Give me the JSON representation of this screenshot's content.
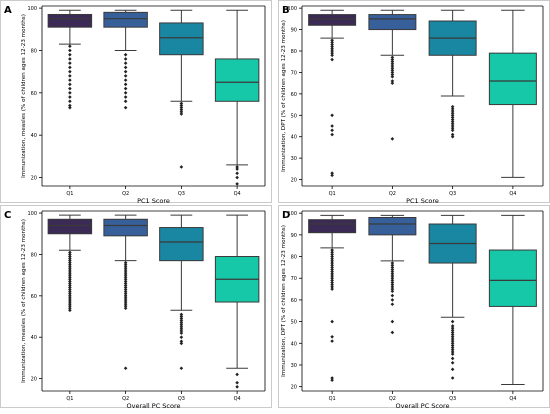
{
  "chart_data": [
    {
      "type": "box",
      "panel_label": "A",
      "xlabel": "PC1 Score",
      "ylabel": "Immunization, measles (% of children ages 12-23 months)",
      "categories": [
        "Q1",
        "Q2",
        "Q3",
        "Q4"
      ],
      "ylim": [
        16,
        101
      ],
      "yticks": [
        20,
        40,
        60,
        80,
        100
      ],
      "boxes": [
        {
          "category": "Q1",
          "whisker_low": 83,
          "q1": 91,
          "median": 95,
          "q3": 97,
          "whisker_high": 99,
          "outliers": [
            82,
            80,
            78,
            76,
            74,
            72,
            70,
            68,
            66,
            64,
            62,
            60,
            58,
            56,
            54,
            53
          ]
        },
        {
          "category": "Q2",
          "whisker_low": 80,
          "q1": 91,
          "median": 95,
          "q3": 98,
          "whisker_high": 99,
          "outliers": [
            78,
            76,
            74,
            72,
            70,
            68,
            66,
            64,
            62,
            60,
            58,
            56,
            53
          ]
        },
        {
          "category": "Q3",
          "whisker_low": 56,
          "q1": 78,
          "median": 86,
          "q3": 93,
          "whisker_high": 99,
          "outliers": [
            55,
            54,
            53,
            52,
            51,
            50,
            25
          ]
        },
        {
          "category": "Q4",
          "whisker_low": 26,
          "q1": 56,
          "median": 65,
          "q3": 76,
          "whisker_high": 99,
          "outliers": [
            25,
            24,
            22,
            20,
            17
          ]
        }
      ]
    },
    {
      "type": "box",
      "panel_label": "B",
      "xlabel": "PC1 Score",
      "ylabel": "Immunization, DPT (% of children ages 12-23 months)",
      "categories": [
        "Q1",
        "Q2",
        "Q3",
        "Q4"
      ],
      "ylim": [
        17,
        101
      ],
      "yticks": [
        20,
        30,
        40,
        50,
        60,
        70,
        80,
        90,
        100
      ],
      "boxes": [
        {
          "category": "Q1",
          "whisker_low": 86,
          "q1": 92,
          "median": 95,
          "q3": 97,
          "whisker_high": 99,
          "outliers": [
            85,
            84,
            83,
            82,
            81,
            80,
            79,
            78,
            76,
            50,
            45,
            43,
            41,
            23,
            22
          ]
        },
        {
          "category": "Q2",
          "whisker_low": 78,
          "q1": 90,
          "median": 95,
          "q3": 97,
          "whisker_high": 99,
          "outliers": [
            77,
            76,
            75,
            74,
            73,
            72,
            71,
            70,
            69,
            68,
            66,
            65,
            39
          ]
        },
        {
          "category": "Q3",
          "whisker_low": 59,
          "q1": 78,
          "median": 86,
          "q3": 94,
          "whisker_high": 99,
          "outliers": [
            54,
            53,
            52,
            51,
            50,
            49,
            48,
            47,
            46,
            45,
            44,
            43,
            41,
            40
          ]
        },
        {
          "category": "Q4",
          "whisker_low": 21,
          "q1": 55,
          "median": 66,
          "q3": 79,
          "whisker_high": 99,
          "outliers": []
        }
      ]
    },
    {
      "type": "box",
      "panel_label": "C",
      "xlabel": "Overall PC Score",
      "ylabel": "Immunization, measles (% of children ages 12-23 months)",
      "categories": [
        "Q1",
        "Q2",
        "Q3",
        "Q4"
      ],
      "ylim": [
        14,
        101
      ],
      "yticks": [
        20,
        40,
        60,
        80,
        100
      ],
      "boxes": [
        {
          "category": "Q1",
          "whisker_low": 82,
          "q1": 90,
          "median": 94,
          "q3": 97,
          "whisker_high": 99,
          "outliers": [
            81,
            80,
            79,
            78,
            77,
            76,
            75,
            74,
            73,
            72,
            71,
            70,
            69,
            68,
            67,
            66,
            65,
            64,
            63,
            62,
            61,
            60,
            59,
            58,
            57,
            56,
            55,
            54,
            53
          ]
        },
        {
          "category": "Q2",
          "whisker_low": 77,
          "q1": 89,
          "median": 94,
          "q3": 97,
          "whisker_high": 99,
          "outliers": [
            76,
            75,
            74,
            73,
            72,
            71,
            70,
            69,
            68,
            67,
            66,
            65,
            64,
            63,
            62,
            61,
            60,
            59,
            58,
            57,
            56,
            55,
            54,
            25
          ]
        },
        {
          "category": "Q3",
          "whisker_low": 53,
          "q1": 77,
          "median": 86,
          "q3": 93,
          "whisker_high": 99,
          "outliers": [
            51,
            50,
            49,
            48,
            47,
            46,
            45,
            44,
            43,
            42,
            40,
            38,
            37,
            25
          ]
        },
        {
          "category": "Q4",
          "whisker_low": 25,
          "q1": 57,
          "median": 68,
          "q3": 79,
          "whisker_high": 99,
          "outliers": [
            22,
            18,
            16
          ]
        }
      ]
    },
    {
      "type": "box",
      "panel_label": "D",
      "xlabel": "Overall PC Score",
      "ylabel": "Immunization, DPT (% of children ages 12-23 months)",
      "categories": [
        "Q1",
        "Q2",
        "Q3",
        "Q4"
      ],
      "ylim": [
        18,
        101
      ],
      "yticks": [
        20,
        30,
        40,
        50,
        60,
        70,
        80,
        90,
        100
      ],
      "boxes": [
        {
          "category": "Q1",
          "whisker_low": 84,
          "q1": 91,
          "median": 95,
          "q3": 97,
          "whisker_high": 99,
          "outliers": [
            83,
            82,
            81,
            80,
            79,
            78,
            77,
            76,
            75,
            74,
            73,
            72,
            71,
            70,
            69,
            68,
            67,
            66,
            65,
            50,
            43,
            41,
            24,
            23
          ]
        },
        {
          "category": "Q2",
          "whisker_low": 78,
          "q1": 90,
          "median": 95,
          "q3": 98,
          "whisker_high": 99,
          "outliers": [
            77,
            76,
            75,
            74,
            73,
            72,
            71,
            70,
            69,
            68,
            67,
            66,
            65,
            64,
            62,
            60,
            58,
            50,
            45
          ]
        },
        {
          "category": "Q3",
          "whisker_low": 52,
          "q1": 77,
          "median": 86,
          "q3": 95,
          "whisker_high": 99,
          "outliers": [
            50,
            48,
            47,
            46,
            45,
            44,
            43,
            42,
            41,
            40,
            39,
            38,
            37,
            36,
            35,
            33,
            31,
            28,
            24
          ]
        },
        {
          "category": "Q4",
          "whisker_low": 21,
          "q1": 57,
          "median": 69,
          "q3": 83,
          "whisker_high": 99,
          "outliers": []
        }
      ]
    }
  ],
  "colors": {
    "Q1": "#3b2a55",
    "Q2": "#37609a",
    "Q3": "#1986a2",
    "Q4": "#16c8a7",
    "outline": "#3a3a3a",
    "outlier": "#222222",
    "axis": "#000000",
    "frame": "#bdbdbd"
  }
}
